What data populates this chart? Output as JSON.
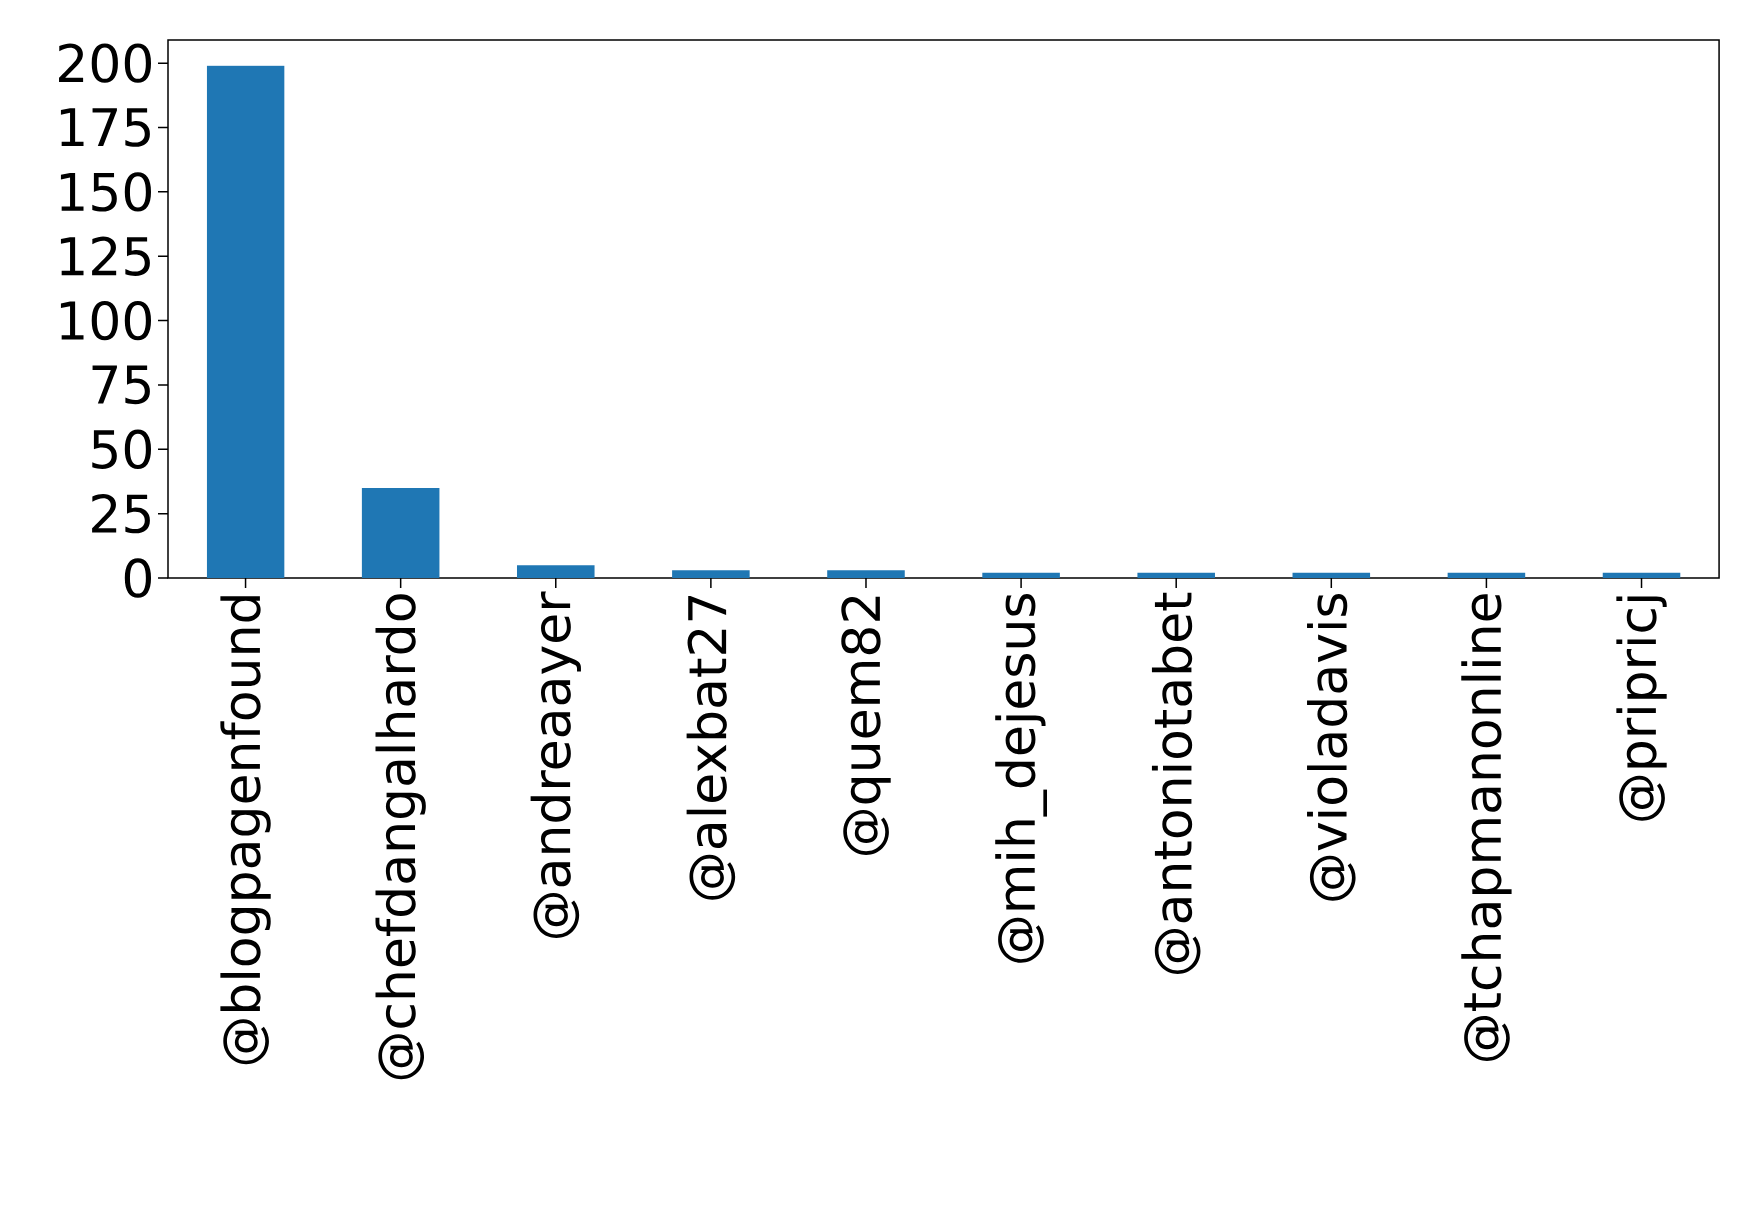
{
  "chart_data": {
    "type": "bar",
    "categories": [
      "@blogpagenfound",
      "@chefdangalhardo",
      "@andreaayer",
      "@alexbat27",
      "@quem82",
      "@mih_dejesus",
      "@antoniotabet",
      "@violadavis",
      "@tchapmanonline",
      "@pripricj"
    ],
    "values": [
      199,
      35,
      5,
      3,
      3,
      2,
      2,
      2,
      2,
      2
    ],
    "color": "#1f77b4",
    "ylim": [
      0,
      209
    ],
    "yticks": [
      0,
      25,
      50,
      75,
      100,
      125,
      150,
      175,
      200
    ],
    "grid": false
  }
}
